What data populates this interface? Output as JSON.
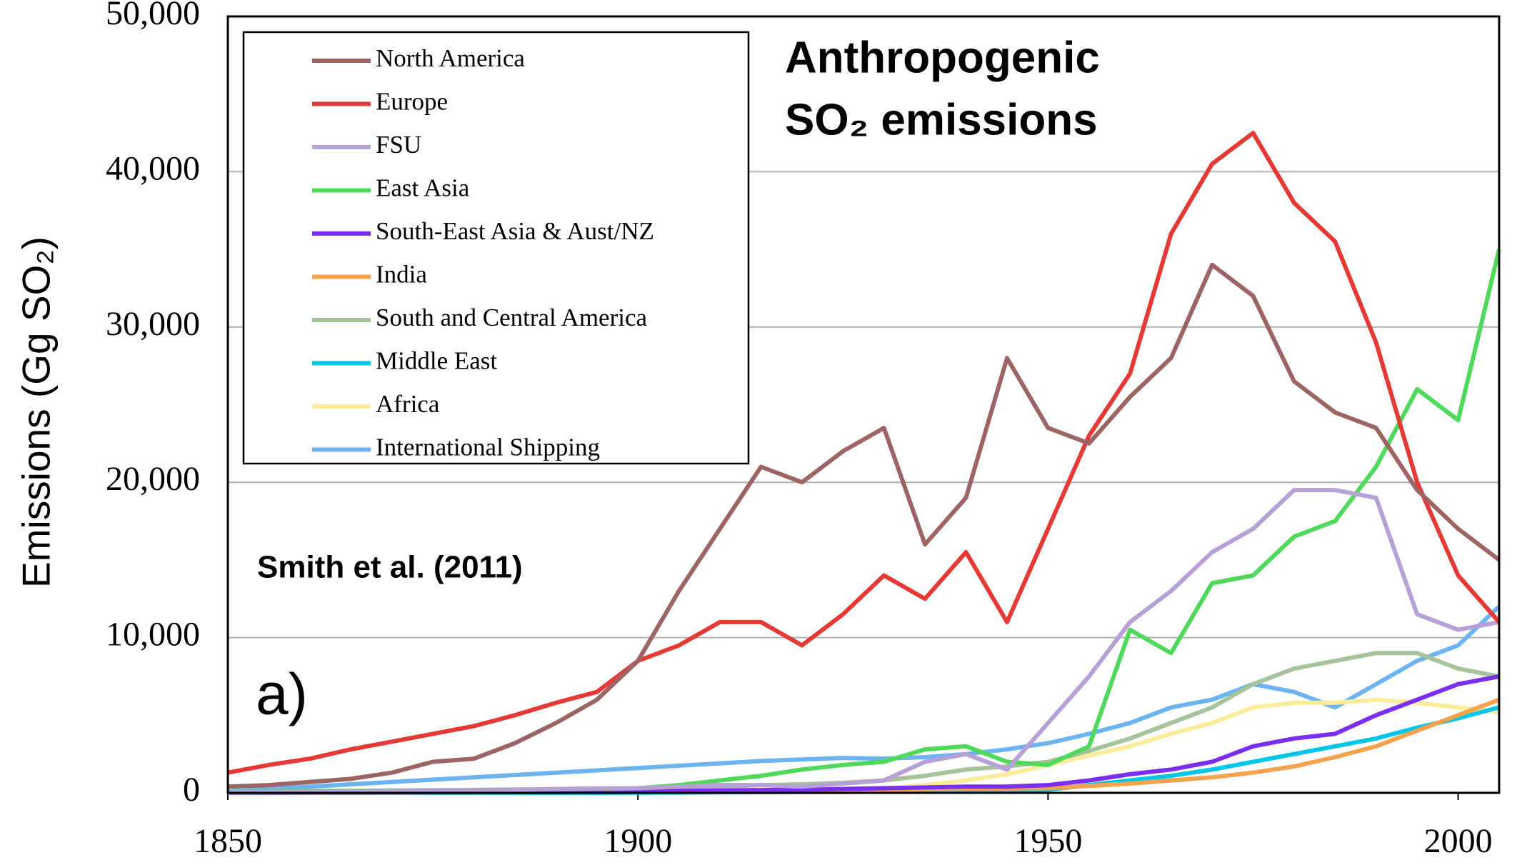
{
  "chart_data": {
    "type": "line",
    "title": [
      "Anthropogenic",
      "SO₂ emissions"
    ],
    "y_label": "Emissions (Gg SO₂)",
    "annotations": [
      "Smith et al. (2011)",
      "a)"
    ],
    "x": [
      1850,
      1855,
      1860,
      1865,
      1870,
      1875,
      1880,
      1885,
      1890,
      1895,
      1900,
      1905,
      1910,
      1915,
      1920,
      1925,
      1930,
      1935,
      1940,
      1945,
      1950,
      1955,
      1960,
      1965,
      1970,
      1975,
      1980,
      1985,
      1990,
      1995,
      2000,
      2005
    ],
    "series": [
      {
        "name": "North America",
        "color": "#9c6464",
        "values": [
          400,
          500,
          700,
          900,
          1300,
          2000,
          2200,
          3200,
          4500,
          6000,
          8500,
          13000,
          17000,
          21000,
          20000,
          22000,
          23500,
          16000,
          19000,
          28000,
          23500,
          22500,
          25500,
          28000,
          34000,
          32000,
          26500,
          24500,
          23500,
          19500,
          17000,
          15000
        ]
      },
      {
        "name": "Europe",
        "color": "#e53935",
        "values": [
          1300,
          1800,
          2200,
          2800,
          3300,
          3800,
          4300,
          5000,
          5800,
          6500,
          8500,
          9500,
          11000,
          11000,
          9500,
          11500,
          14000,
          12500,
          15500,
          11000,
          17000,
          23000,
          27000,
          36000,
          40500,
          42500,
          38000,
          35500,
          29000,
          20000,
          14000,
          11000
        ]
      },
      {
        "name": "FSU",
        "color": "#b7a0d6",
        "values": [
          50,
          60,
          80,
          100,
          120,
          150,
          180,
          200,
          250,
          280,
          300,
          400,
          500,
          500,
          400,
          600,
          800,
          2000,
          2500,
          1500,
          4500,
          7500,
          11000,
          13000,
          15500,
          17000,
          19500,
          19500,
          19000,
          11500,
          10500,
          11000
        ]
      },
      {
        "name": "East Asia",
        "color": "#4fd95a",
        "values": [
          100,
          110,
          120,
          130,
          150,
          170,
          190,
          210,
          240,
          270,
          300,
          500,
          800,
          1100,
          1500,
          1800,
          2000,
          2800,
          3000,
          2000,
          1800,
          3000,
          10500,
          9000,
          13500,
          14000,
          16500,
          17500,
          21000,
          26000,
          24000,
          35000
        ]
      },
      {
        "name": "South-East Asia & Aust/NZ",
        "color": "#7a2ff0",
        "values": [
          20,
          20,
          30,
          30,
          40,
          40,
          50,
          50,
          60,
          80,
          100,
          120,
          150,
          180,
          200,
          250,
          300,
          350,
          400,
          400,
          500,
          800,
          1200,
          1500,
          2000,
          3000,
          3500,
          3800,
          5000,
          6000,
          7000,
          7500
        ]
      },
      {
        "name": "India",
        "color": "#f5a24c",
        "values": [
          10,
          10,
          10,
          20,
          20,
          30,
          30,
          40,
          50,
          60,
          70,
          80,
          100,
          120,
          150,
          180,
          200,
          220,
          250,
          280,
          300,
          450,
          600,
          800,
          1000,
          1300,
          1700,
          2300,
          3000,
          4000,
          5000,
          6000
        ]
      },
      {
        "name": "South and Central America",
        "color": "#a6c39c",
        "values": [
          20,
          20,
          30,
          30,
          40,
          50,
          60,
          80,
          100,
          150,
          200,
          300,
          400,
          500,
          550,
          650,
          800,
          1100,
          1500,
          1700,
          2000,
          2700,
          3500,
          4500,
          5500,
          7000,
          8000,
          8500,
          9000,
          9000,
          8000,
          7500
        ]
      },
      {
        "name": "Middle East",
        "color": "#00c6ea",
        "values": [
          0,
          0,
          0,
          0,
          0,
          0,
          0,
          0,
          0,
          0,
          10,
          20,
          30,
          40,
          50,
          60,
          80,
          100,
          120,
          150,
          200,
          500,
          800,
          1100,
          1500,
          2000,
          2500,
          3000,
          3500,
          4200,
          4800,
          5500
        ]
      },
      {
        "name": "Africa",
        "color": "#fbec9c",
        "values": [
          20,
          20,
          30,
          30,
          40,
          50,
          60,
          70,
          80,
          100,
          120,
          140,
          160,
          200,
          220,
          260,
          300,
          500,
          800,
          1200,
          1800,
          2400,
          3000,
          3800,
          4500,
          5500,
          5800,
          5800,
          6000,
          5800,
          5500,
          5200
        ]
      },
      {
        "name": "International Shipping",
        "color": "#6cb3f2",
        "values": [
          100,
          250,
          400,
          550,
          700,
          850,
          1000,
          1150,
          1300,
          1450,
          1600,
          1750,
          1900,
          2050,
          2150,
          2250,
          2200,
          2300,
          2500,
          2800,
          3200,
          3800,
          4500,
          5500,
          6000,
          7000,
          6500,
          5500,
          7000,
          8500,
          9500,
          12000
        ]
      }
    ],
    "xlim": [
      1850,
      2005
    ],
    "xticks": [
      1850,
      1900,
      1950,
      2000
    ],
    "ylim": [
      0,
      50000
    ],
    "yticks": [
      0,
      {
        "value": 10000,
        "label": "10,000"
      },
      {
        "value": 20000,
        "label": "20,000"
      },
      {
        "value": 30000,
        "label": "30,000"
      },
      {
        "value": 40000,
        "label": "40,000"
      },
      {
        "value": 50000,
        "label": "50,000"
      }
    ],
    "grid": true,
    "legend": "upper left"
  }
}
